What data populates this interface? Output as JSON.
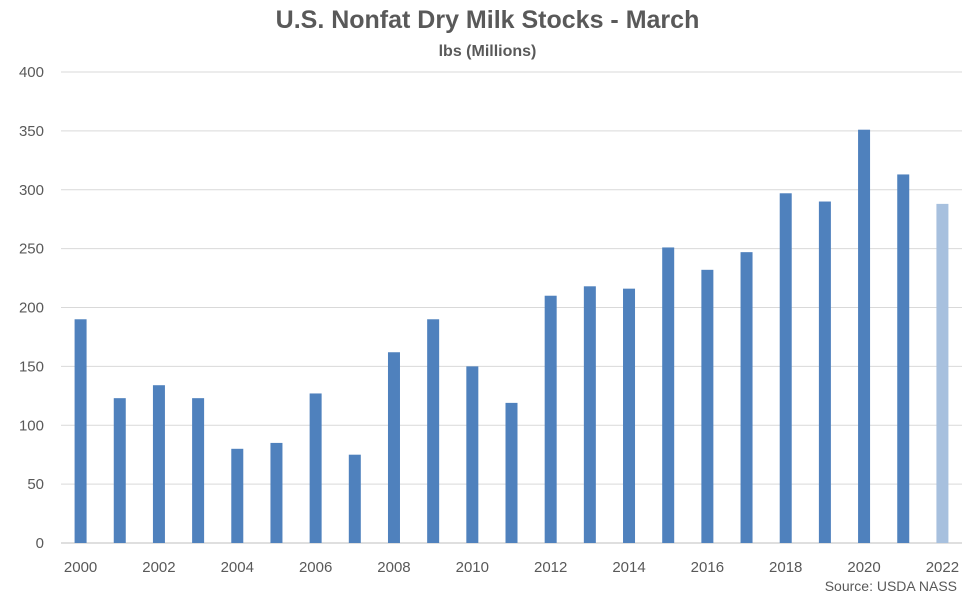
{
  "chart_data": {
    "type": "bar",
    "title": "U.S. Nonfat Dry Milk Stocks - March",
    "subtitle": "lbs (Millions)",
    "xlabel": "",
    "ylabel": "",
    "ylim": [
      0,
      400
    ],
    "yticks": [
      0,
      50,
      100,
      150,
      200,
      250,
      300,
      350,
      400
    ],
    "grid": true,
    "categories": [
      "2000",
      "2001",
      "2002",
      "2003",
      "2004",
      "2005",
      "2006",
      "2007",
      "2008",
      "2009",
      "2010",
      "2011",
      "2012",
      "2013",
      "2014",
      "2015",
      "2016",
      "2017",
      "2018",
      "2019",
      "2020",
      "2021",
      "2022"
    ],
    "xtick_labels": [
      "2000",
      "2002",
      "2004",
      "2006",
      "2008",
      "2010",
      "2012",
      "2014",
      "2016",
      "2018",
      "2020",
      "2022"
    ],
    "values": [
      190,
      123,
      134,
      123,
      80,
      85,
      127,
      75,
      162,
      190,
      150,
      119,
      210,
      218,
      216,
      251,
      232,
      247,
      297,
      290,
      351,
      313,
      288
    ],
    "colors": {
      "bar": "#4f81bd",
      "highlight_bar": "#a7c0de",
      "grid": "#d9d9d9",
      "text": "#595959"
    },
    "highlighted_category": "2022",
    "source": "Source: USDA NASS"
  }
}
